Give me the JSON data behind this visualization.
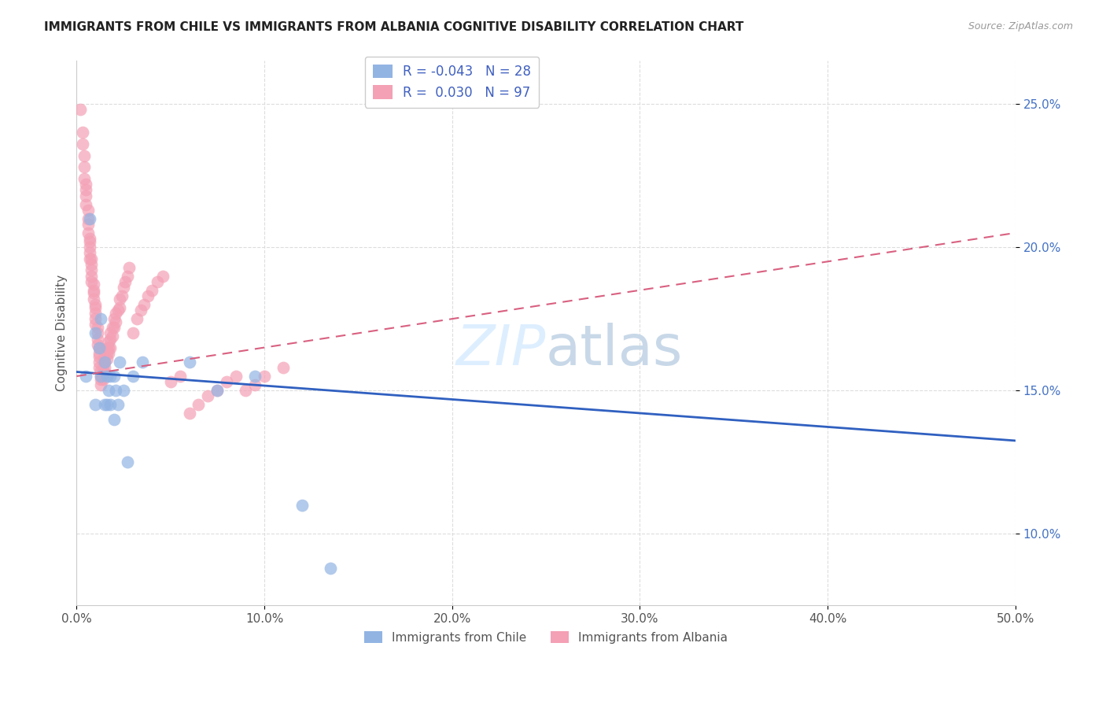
{
  "title": "IMMIGRANTS FROM CHILE VS IMMIGRANTS FROM ALBANIA COGNITIVE DISABILITY CORRELATION CHART",
  "source": "Source: ZipAtlas.com",
  "xlabel": "",
  "ylabel": "Cognitive Disability",
  "xlim": [
    0.0,
    0.5
  ],
  "ylim": [
    0.075,
    0.265
  ],
  "x_ticks": [
    0.0,
    0.1,
    0.2,
    0.3,
    0.4,
    0.5
  ],
  "x_tick_labels": [
    "0.0%",
    "10.0%",
    "20.0%",
    "30.0%",
    "40.0%",
    "50.0%"
  ],
  "y_ticks": [
    0.1,
    0.15,
    0.2,
    0.25
  ],
  "y_tick_labels": [
    "10.0%",
    "15.0%",
    "20.0%",
    "25.0%"
  ],
  "legend_chile_R": "-0.043",
  "legend_chile_N": "28",
  "legend_albania_R": "0.030",
  "legend_albania_N": "97",
  "chile_color": "#92b4e3",
  "albania_color": "#f4a0b5",
  "chile_line_color": "#3060c0",
  "albania_line_color": "#d96080",
  "watermark_color": "#ddeeff",
  "background_color": "#ffffff",
  "chile_x": [
    0.005,
    0.007,
    0.01,
    0.01,
    0.012,
    0.013,
    0.013,
    0.015,
    0.015,
    0.016,
    0.016,
    0.017,
    0.018,
    0.018,
    0.02,
    0.02,
    0.021,
    0.022,
    0.023,
    0.025,
    0.027,
    0.03,
    0.035,
    0.06,
    0.075,
    0.095,
    0.12,
    0.135
  ],
  "chile_y": [
    0.155,
    0.21,
    0.145,
    0.17,
    0.165,
    0.155,
    0.175,
    0.16,
    0.145,
    0.155,
    0.145,
    0.15,
    0.155,
    0.145,
    0.155,
    0.14,
    0.15,
    0.145,
    0.16,
    0.15,
    0.125,
    0.155,
    0.16,
    0.16,
    0.15,
    0.155,
    0.11,
    0.088
  ],
  "albania_x": [
    0.002,
    0.003,
    0.003,
    0.004,
    0.004,
    0.004,
    0.005,
    0.005,
    0.005,
    0.005,
    0.006,
    0.006,
    0.006,
    0.006,
    0.007,
    0.007,
    0.007,
    0.007,
    0.007,
    0.008,
    0.008,
    0.008,
    0.008,
    0.008,
    0.009,
    0.009,
    0.009,
    0.009,
    0.01,
    0.01,
    0.01,
    0.01,
    0.01,
    0.011,
    0.011,
    0.011,
    0.011,
    0.012,
    0.012,
    0.012,
    0.012,
    0.012,
    0.013,
    0.013,
    0.013,
    0.013,
    0.014,
    0.014,
    0.014,
    0.014,
    0.015,
    0.015,
    0.015,
    0.015,
    0.016,
    0.016,
    0.016,
    0.017,
    0.017,
    0.017,
    0.018,
    0.018,
    0.018,
    0.019,
    0.019,
    0.02,
    0.02,
    0.021,
    0.021,
    0.022,
    0.023,
    0.023,
    0.024,
    0.025,
    0.026,
    0.027,
    0.028,
    0.03,
    0.032,
    0.034,
    0.036,
    0.038,
    0.04,
    0.043,
    0.046,
    0.05,
    0.055,
    0.06,
    0.065,
    0.07,
    0.075,
    0.08,
    0.085,
    0.09,
    0.095,
    0.1,
    0.11
  ],
  "albania_y": [
    0.248,
    0.24,
    0.236,
    0.232,
    0.228,
    0.224,
    0.222,
    0.22,
    0.218,
    0.215,
    0.213,
    0.21,
    0.208,
    0.205,
    0.203,
    0.202,
    0.2,
    0.198,
    0.196,
    0.196,
    0.194,
    0.192,
    0.19,
    0.188,
    0.187,
    0.185,
    0.184,
    0.182,
    0.18,
    0.179,
    0.177,
    0.175,
    0.173,
    0.172,
    0.17,
    0.168,
    0.166,
    0.165,
    0.163,
    0.162,
    0.16,
    0.158,
    0.157,
    0.155,
    0.154,
    0.152,
    0.16,
    0.158,
    0.156,
    0.154,
    0.162,
    0.16,
    0.158,
    0.156,
    0.165,
    0.163,
    0.161,
    0.167,
    0.165,
    0.163,
    0.17,
    0.168,
    0.165,
    0.172,
    0.169,
    0.175,
    0.172,
    0.177,
    0.174,
    0.178,
    0.182,
    0.179,
    0.183,
    0.186,
    0.188,
    0.19,
    0.193,
    0.17,
    0.175,
    0.178,
    0.18,
    0.183,
    0.185,
    0.188,
    0.19,
    0.153,
    0.155,
    0.142,
    0.145,
    0.148,
    0.15,
    0.153,
    0.155,
    0.15,
    0.152,
    0.155,
    0.158
  ],
  "chile_trend": [
    0.1565,
    0.1325
  ],
  "albania_trend": [
    0.155,
    0.205
  ]
}
